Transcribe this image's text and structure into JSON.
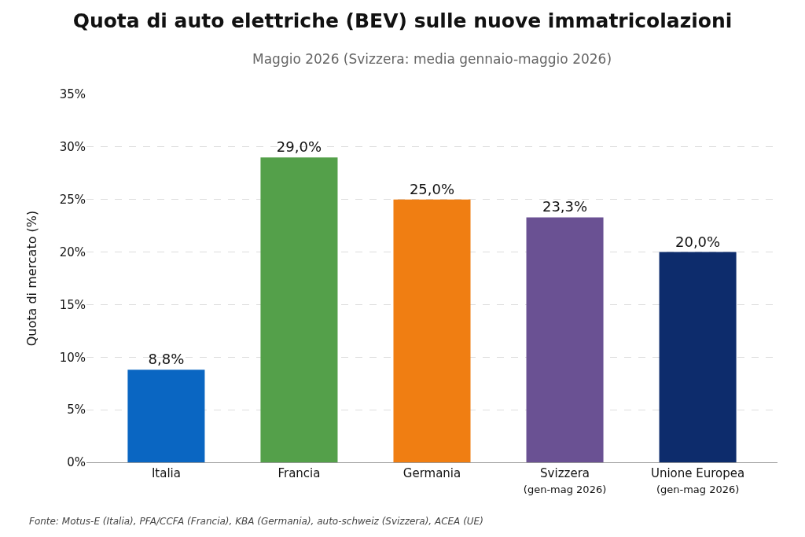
{
  "chart_data": {
    "type": "bar",
    "title": "Quota di auto elettriche (BEV) sulle nuove immatricolazioni",
    "subtitle": "Maggio 2026 (Svizzera: media gennaio-maggio 2026)",
    "ylabel": "Quota di mercato (%)",
    "categories": [
      "Italia",
      "Francia",
      "Germania",
      "Svizzera\n(gen-mag 2026)",
      "Unione Europea\n(gen-mag 2026)"
    ],
    "values": [
      8.8,
      29.0,
      25.0,
      23.3,
      20.0
    ],
    "colors": [
      "#0a66c2",
      "#54a04a",
      "#f07e12",
      "#6a5193",
      "#0d2c6c"
    ],
    "value_labels": [
      "8,8%",
      "29,0%",
      "25,0%",
      "23,3%",
      "20,0%"
    ],
    "ylim": [
      0,
      35
    ],
    "yticks": [
      {
        "value": 0,
        "label": "0%"
      },
      {
        "value": 5,
        "label": "5%"
      },
      {
        "value": 10,
        "label": "10%"
      },
      {
        "value": 15,
        "label": "15%"
      },
      {
        "value": 20,
        "label": "20%"
      },
      {
        "value": 25,
        "label": "25%"
      },
      {
        "value": 30,
        "label": "30%"
      },
      {
        "value": 35,
        "label": "35%"
      }
    ],
    "grid": "y",
    "annotations": [
      "Fonte: Motus-E (Italia), PFA/CCFA (Francia), KBA (Germania), auto-schweiz (Svizzera), ACEA (UE)"
    ]
  }
}
